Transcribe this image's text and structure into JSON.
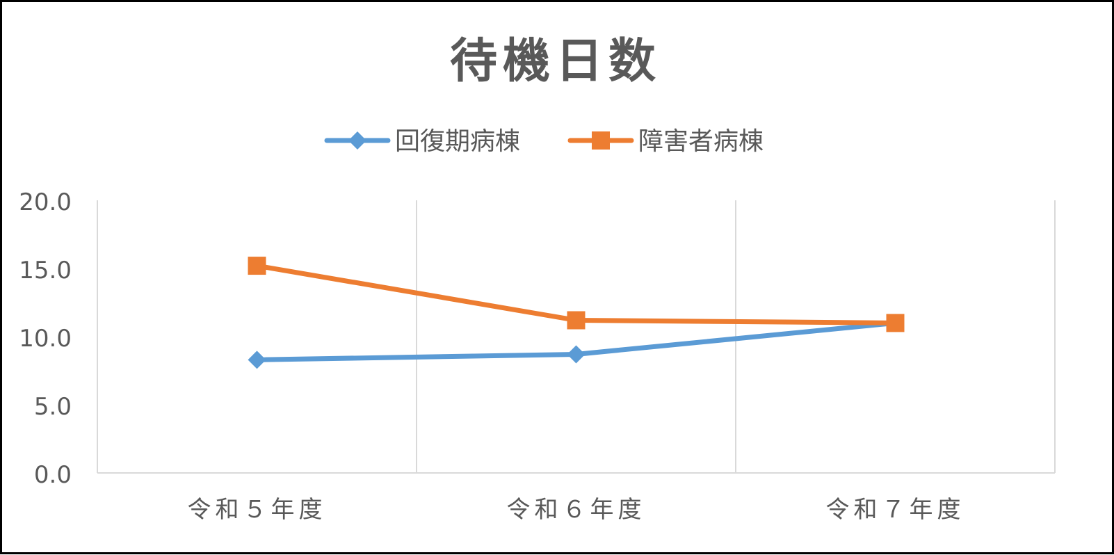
{
  "chart_data": {
    "type": "line",
    "title": "待機日数",
    "xlabel": "",
    "ylabel": "",
    "categories": [
      "令和５年度",
      "令和６年度",
      "令和７年度"
    ],
    "series": [
      {
        "name": "回復期病棟",
        "values": [
          8.3,
          8.7,
          11.0
        ],
        "color": "#5B9BD5",
        "marker": "diamond"
      },
      {
        "name": "障害者病棟",
        "values": [
          15.2,
          11.2,
          11.0
        ],
        "color": "#ED7D31",
        "marker": "square"
      }
    ],
    "ylim": [
      0,
      20
    ],
    "y_ticks": [
      "0.0",
      "5.0",
      "10.0",
      "15.0",
      "20.0"
    ],
    "grid": "vertical",
    "legend_position": "top"
  }
}
